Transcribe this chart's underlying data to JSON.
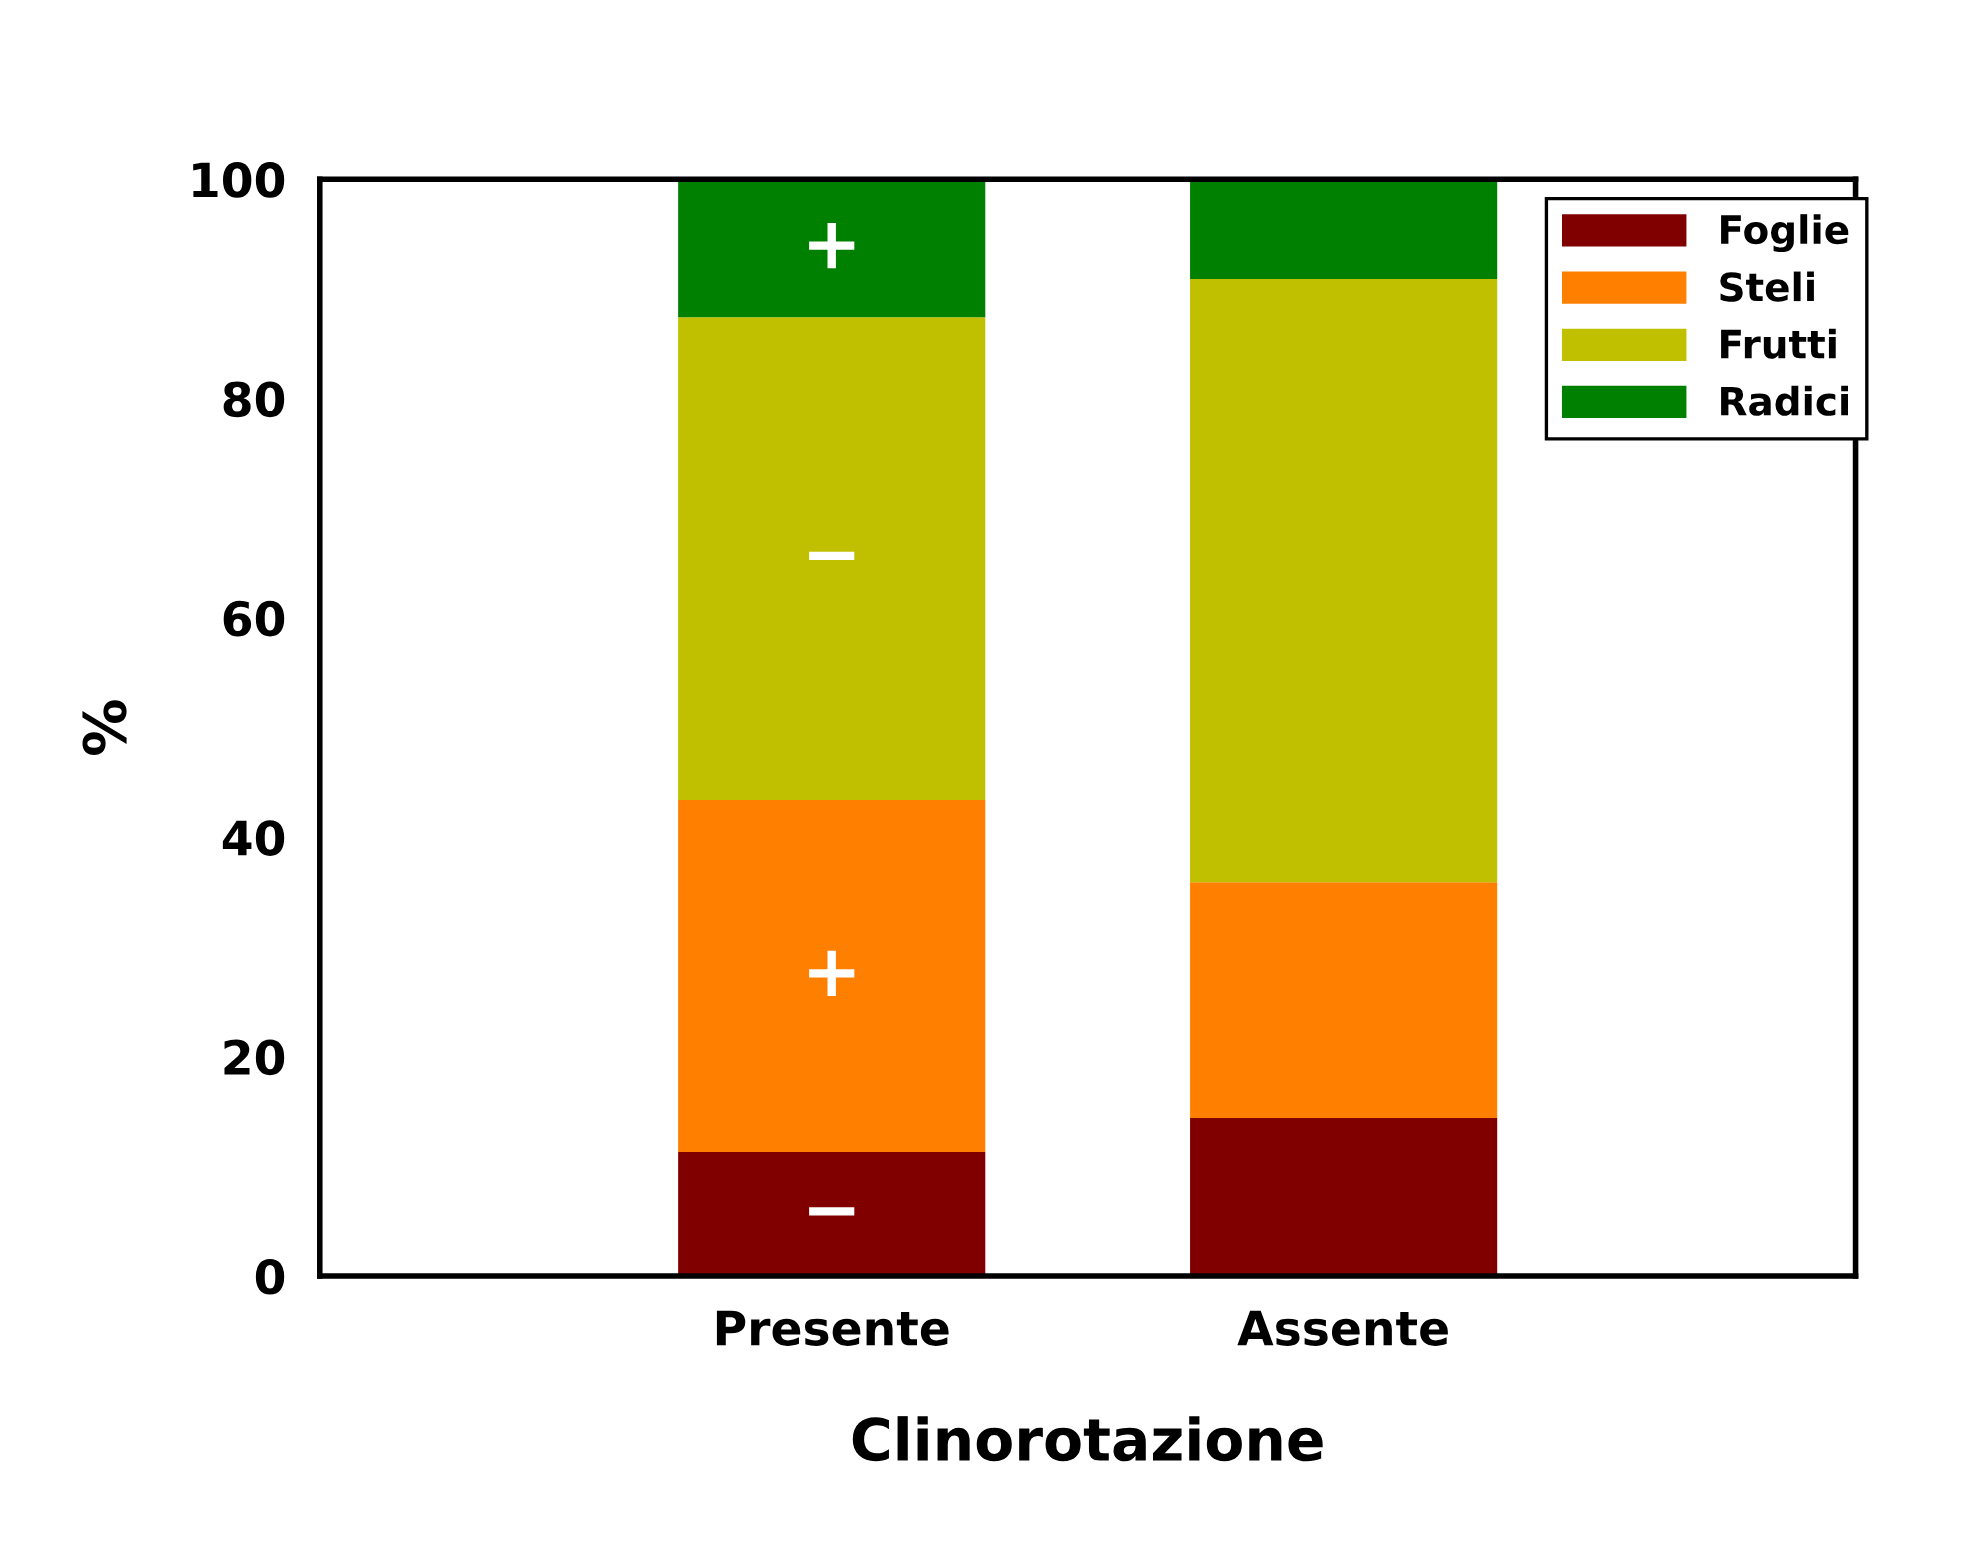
{
  "chart_data": {
    "type": "bar",
    "stacked": true,
    "xlabel": "Clinorotazione",
    "ylabel": "%",
    "categories": [
      "Presente",
      "Assente"
    ],
    "series": [
      {
        "name": "Foglie",
        "color": "#800000",
        "values": [
          11.3,
          14.4
        ]
      },
      {
        "name": "Steli",
        "color": "#ff8000",
        "values": [
          32.1,
          21.5
        ]
      },
      {
        "name": "Frutti",
        "color": "#c0c000",
        "values": [
          44.0,
          55.0
        ]
      },
      {
        "name": "Radici",
        "color": "#008000",
        "values": [
          12.6,
          9.1
        ]
      }
    ],
    "ylim": [
      0,
      100
    ],
    "yticks": [
      0,
      20,
      40,
      60,
      80,
      100
    ],
    "grid": false,
    "legend": "top right",
    "annotations": [
      "−",
      "+",
      "−",
      "+"
    ]
  }
}
